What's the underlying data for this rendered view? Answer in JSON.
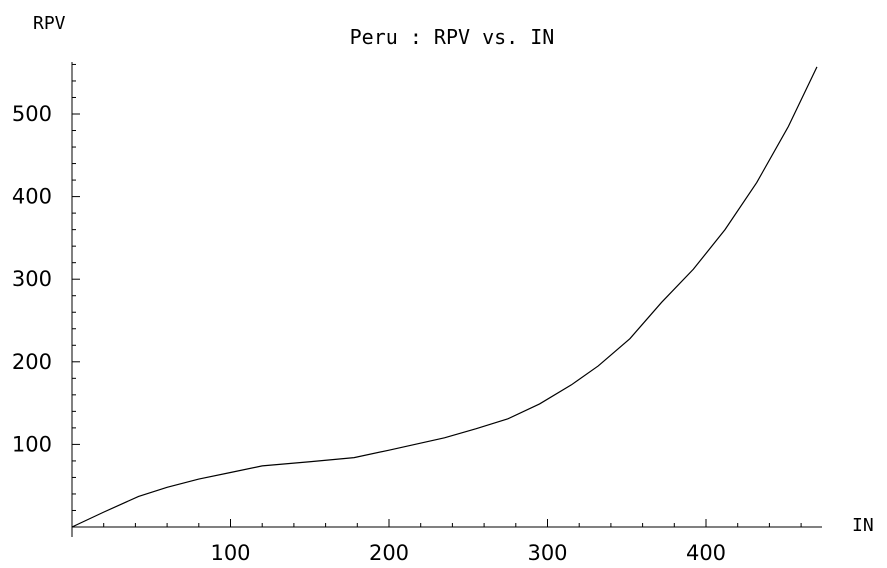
{
  "chart_data": {
    "type": "line",
    "title": "Peru : RPV vs. IN",
    "xlabel": "IN",
    "ylabel": "RPV",
    "xlim": [
      0,
      475
    ],
    "ylim": [
      0,
      565
    ],
    "x_ticks": [
      100,
      200,
      300,
      400
    ],
    "y_ticks": [
      100,
      200,
      300,
      400,
      500
    ],
    "x_minor_step": 20,
    "y_minor_step": 20,
    "grid": false,
    "legend": "none",
    "series": [
      {
        "x": [
          0,
          20,
          42,
          60,
          80,
          100,
          120,
          150,
          178,
          200,
          235,
          255,
          275,
          295,
          315,
          332,
          352,
          372,
          392,
          412,
          432,
          452,
          470
        ],
        "y": [
          0,
          18,
          37,
          48,
          58,
          66,
          74,
          79,
          84,
          93,
          108,
          119,
          131,
          149,
          172,
          195,
          228,
          272,
          312,
          360,
          417,
          485,
          557
        ]
      }
    ]
  }
}
